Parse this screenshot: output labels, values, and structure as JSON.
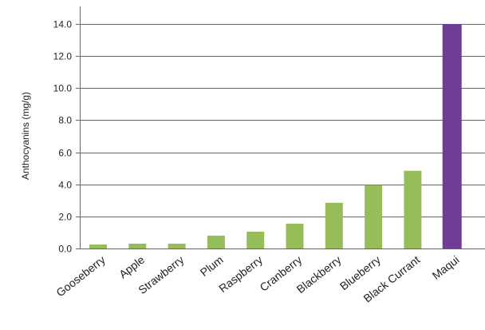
{
  "chart_data": {
    "type": "bar",
    "title": "",
    "xlabel": "",
    "ylabel": "Anthocyanins (mg/g)",
    "ylim": [
      0,
      14
    ],
    "yticks": [
      "0.0",
      "2.0",
      "4.0",
      "6.0",
      "8.0",
      "10.0",
      "12.0",
      "14.0"
    ],
    "grid": true,
    "legend": "none",
    "categories": [
      "Gooseberry",
      "Apple",
      "Strawberry",
      "Plum",
      "Raspberry",
      "Cranberry",
      "Blackberry",
      "Blueberry",
      "Black Currant",
      "Maqui"
    ],
    "values": [
      0.25,
      0.3,
      0.3,
      0.8,
      1.05,
      1.55,
      2.85,
      3.95,
      4.85,
      14.0
    ],
    "colors": {
      "default_bar": "#97bd5b",
      "highlight_bar": "#713c94",
      "highlight_category": "Maqui"
    }
  }
}
